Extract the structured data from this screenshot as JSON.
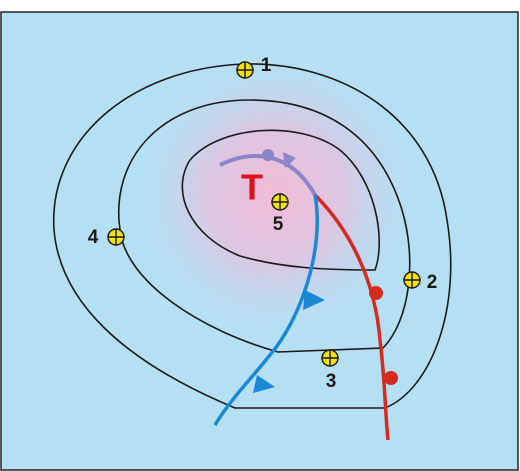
{
  "center_label": "T",
  "stations": [
    {
      "label": "1"
    },
    {
      "label": "2"
    },
    {
      "label": "3"
    },
    {
      "label": "4"
    },
    {
      "label": "5"
    }
  ]
}
